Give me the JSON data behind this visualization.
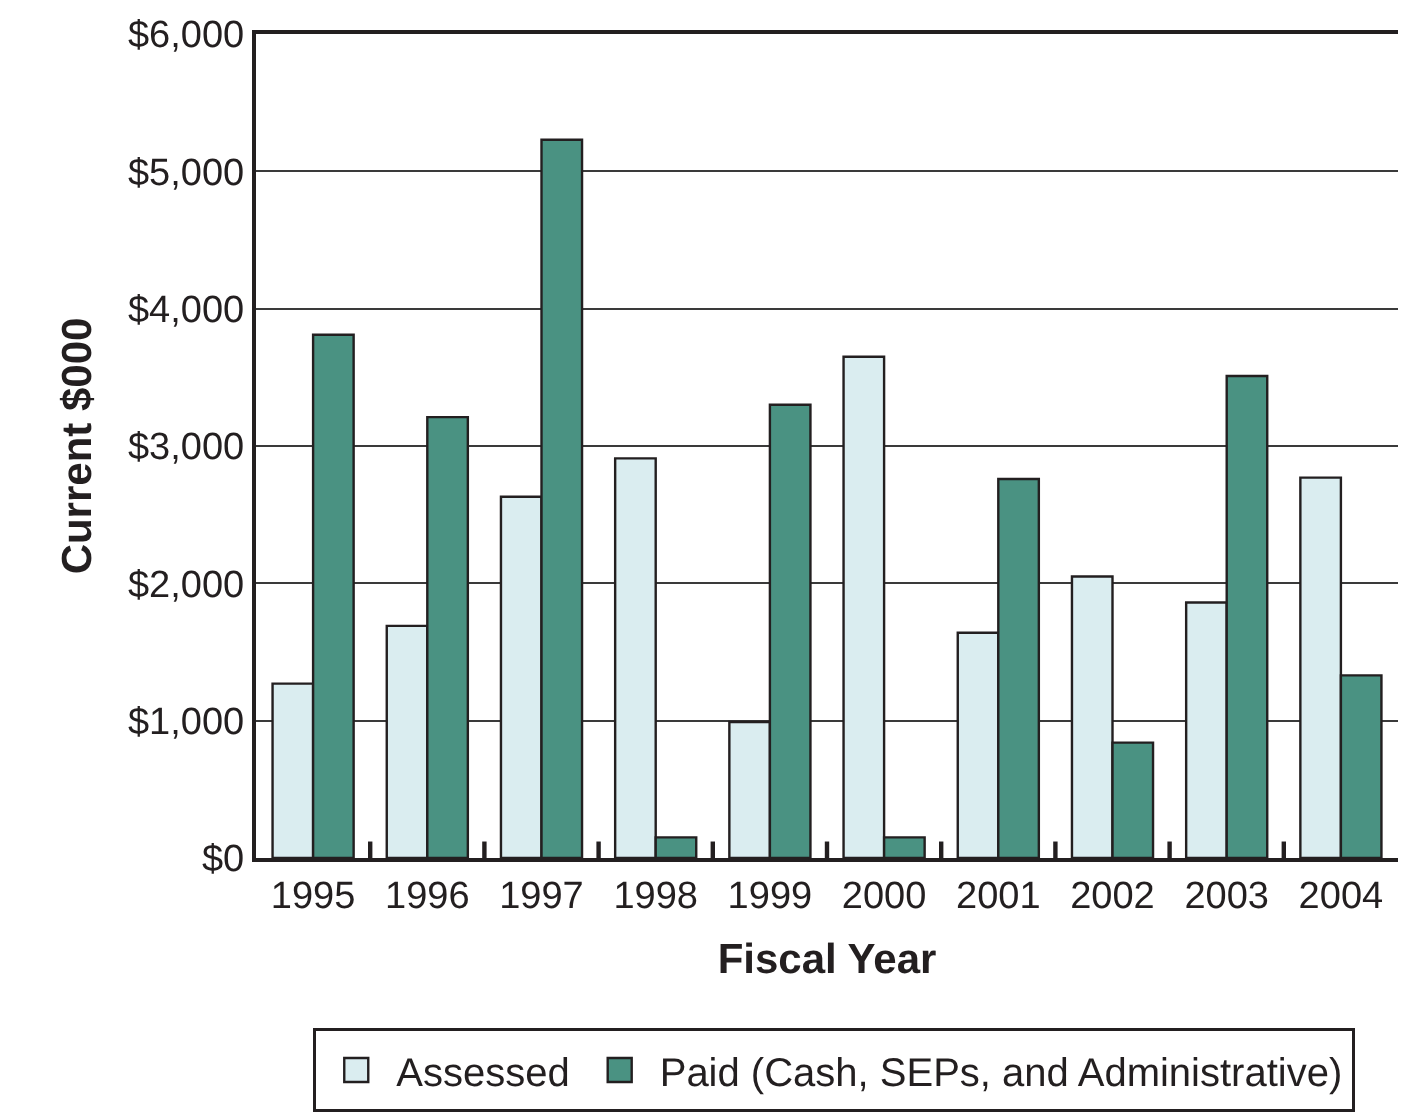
{
  "chart_data": {
    "type": "bar",
    "xlabel": "Fiscal Year",
    "ylabel": "Current $000",
    "categories": [
      "1995",
      "1996",
      "1997",
      "1998",
      "1999",
      "2000",
      "2001",
      "2002",
      "2003",
      "2004"
    ],
    "series": [
      {
        "name": "Assessed",
        "color": "#daedf0",
        "values": [
          1270,
          1690,
          2630,
          2910,
          990,
          3650,
          1640,
          2050,
          1860,
          2770
        ]
      },
      {
        "name": "Paid (Cash, SEPs, and Administrative)",
        "color": "#4a9282",
        "values": [
          3810,
          3210,
          5230,
          150,
          3300,
          150,
          2760,
          840,
          3510,
          1330
        ]
      }
    ],
    "ylim": [
      0,
      6000
    ],
    "yticks": [
      {
        "value": 0,
        "label": "$0"
      },
      {
        "value": 1000,
        "label": "$1,000"
      },
      {
        "value": 2000,
        "label": "$2,000"
      },
      {
        "value": 3000,
        "label": "$3,000"
      },
      {
        "value": 4000,
        "label": "$4,000"
      },
      {
        "value": 5000,
        "label": "$5,000"
      },
      {
        "value": 6000,
        "label": "$6,000"
      }
    ],
    "grid": "y",
    "legend": "bottom"
  }
}
